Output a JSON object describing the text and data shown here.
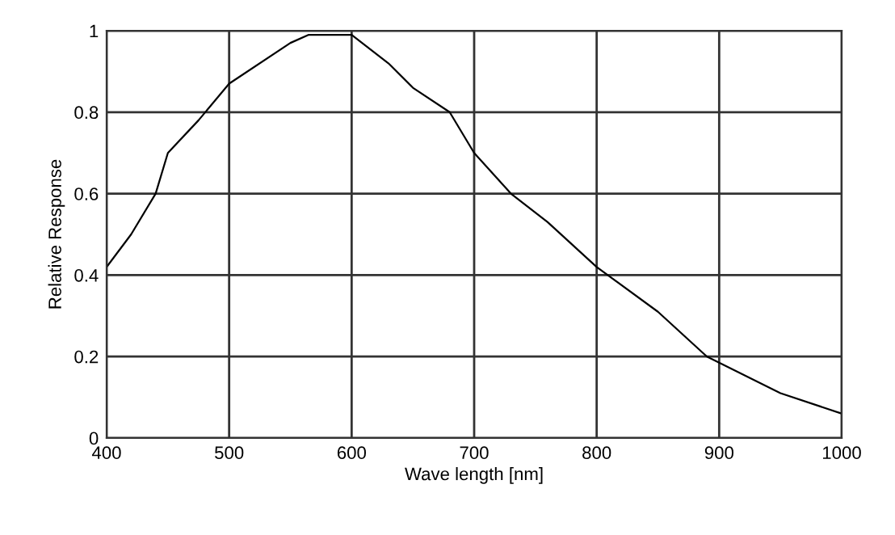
{
  "chart_data": {
    "type": "line",
    "xlabel": "Wave length [nm]",
    "ylabel": "Relative Response",
    "x": [
      400,
      420,
      440,
      450,
      475,
      500,
      550,
      565,
      600,
      630,
      650,
      680,
      700,
      730,
      760,
      800,
      850,
      890,
      950,
      1000
    ],
    "series": [
      {
        "color": "#000000",
        "values": [
          0.42,
          0.5,
          0.6,
          0.7,
          0.78,
          0.87,
          0.97,
          0.99,
          0.99,
          0.92,
          0.86,
          0.8,
          0.7,
          0.6,
          0.53,
          0.42,
          0.31,
          0.2,
          0.11,
          0.06
        ]
      }
    ],
    "xlim": [
      400,
      1000
    ],
    "ylim": [
      0,
      1
    ],
    "xticks": [
      400,
      500,
      600,
      700,
      800,
      900,
      1000
    ],
    "yticks": [
      0,
      0.2,
      0.4,
      0.6,
      0.8,
      1
    ],
    "grid": true,
    "legend": false
  }
}
